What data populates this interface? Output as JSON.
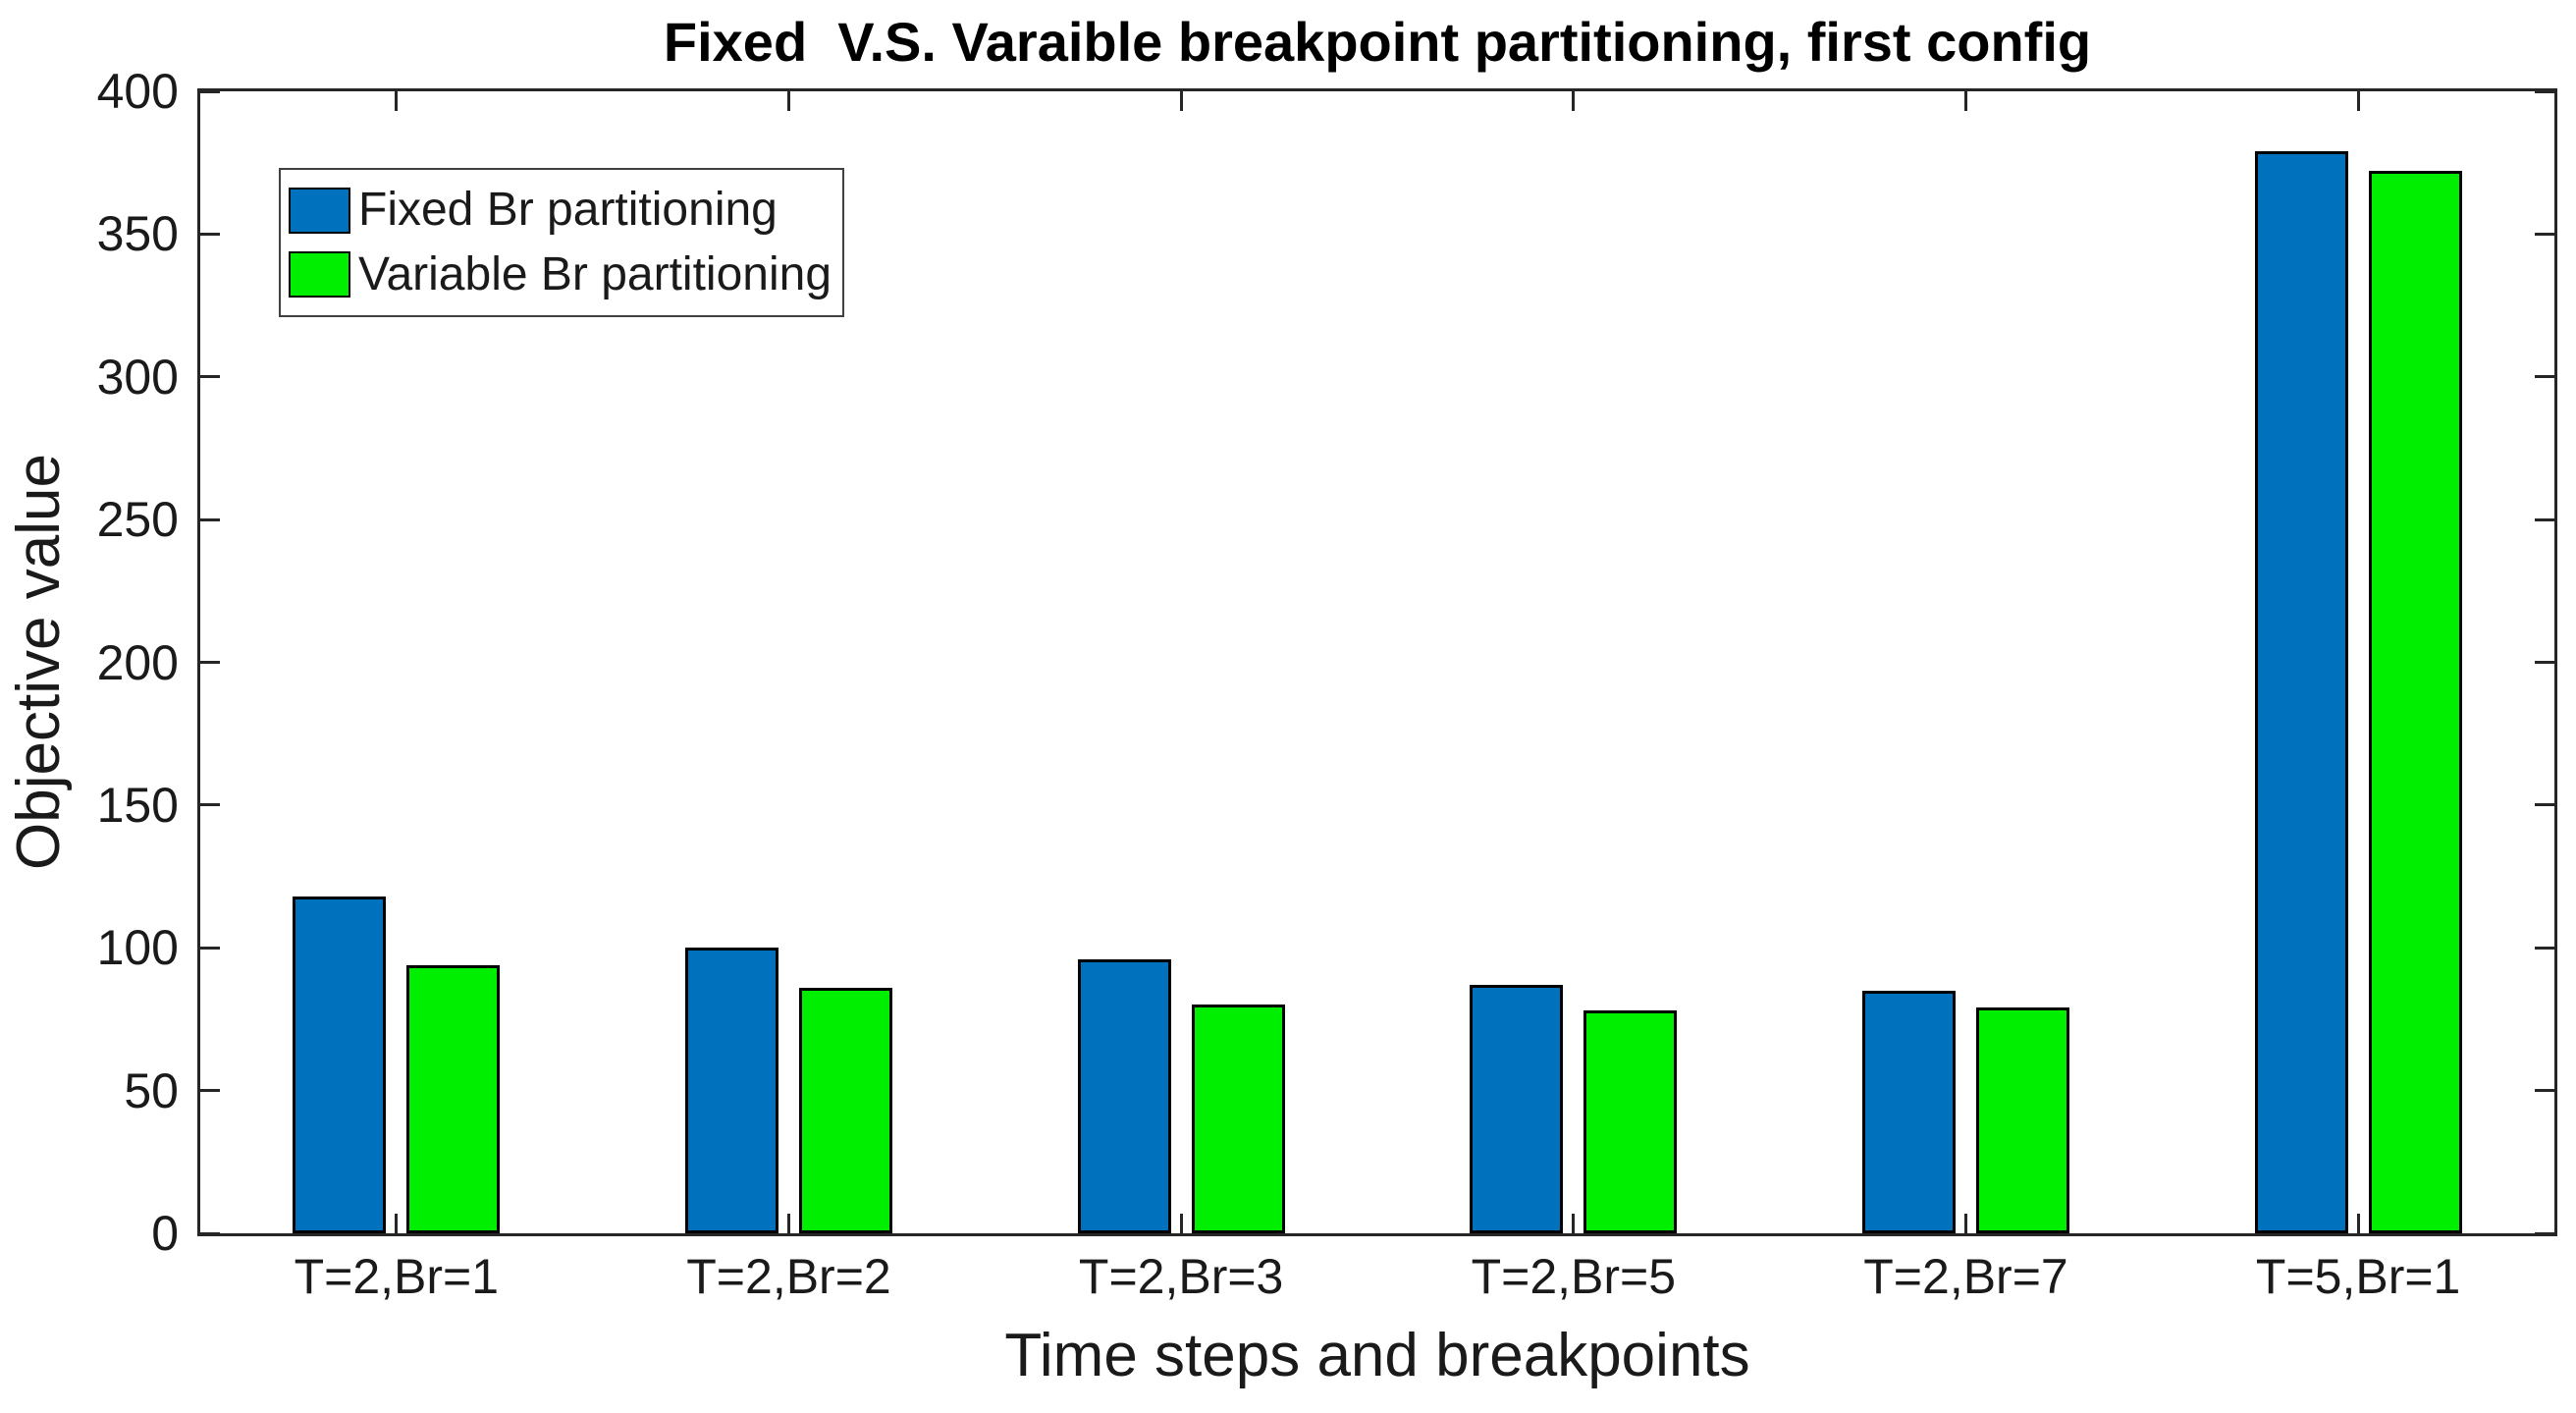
{
  "title": "Fixed  V.S. Varaible breakpoint partitioning, first config",
  "chart_data": {
    "type": "bar",
    "title": "Fixed  V.S. Varaible breakpoint partitioning, first config",
    "xlabel": "Time steps and breakpoints",
    "ylabel": "Objective value",
    "categories": [
      "T=2,Br=1",
      "T=2,Br=2",
      "T=2,Br=3",
      "T=2,Br=5",
      "T=2,Br=7",
      "T=5,Br=1"
    ],
    "series": [
      {
        "name": "Fixed Br partitioning",
        "color": "#0072bd",
        "values": [
          118,
          100,
          96,
          87,
          85,
          379
        ]
      },
      {
        "name": "Variable Br partitioning",
        "color": "#00ee00",
        "values": [
          94,
          86,
          80,
          78,
          79,
          372
        ]
      }
    ],
    "ylim": [
      0,
      400
    ],
    "yticks": [
      0,
      50,
      100,
      150,
      200,
      250,
      300,
      350,
      400
    ],
    "grid": false,
    "legend_position": "top-left",
    "axis_color": "#262626"
  }
}
